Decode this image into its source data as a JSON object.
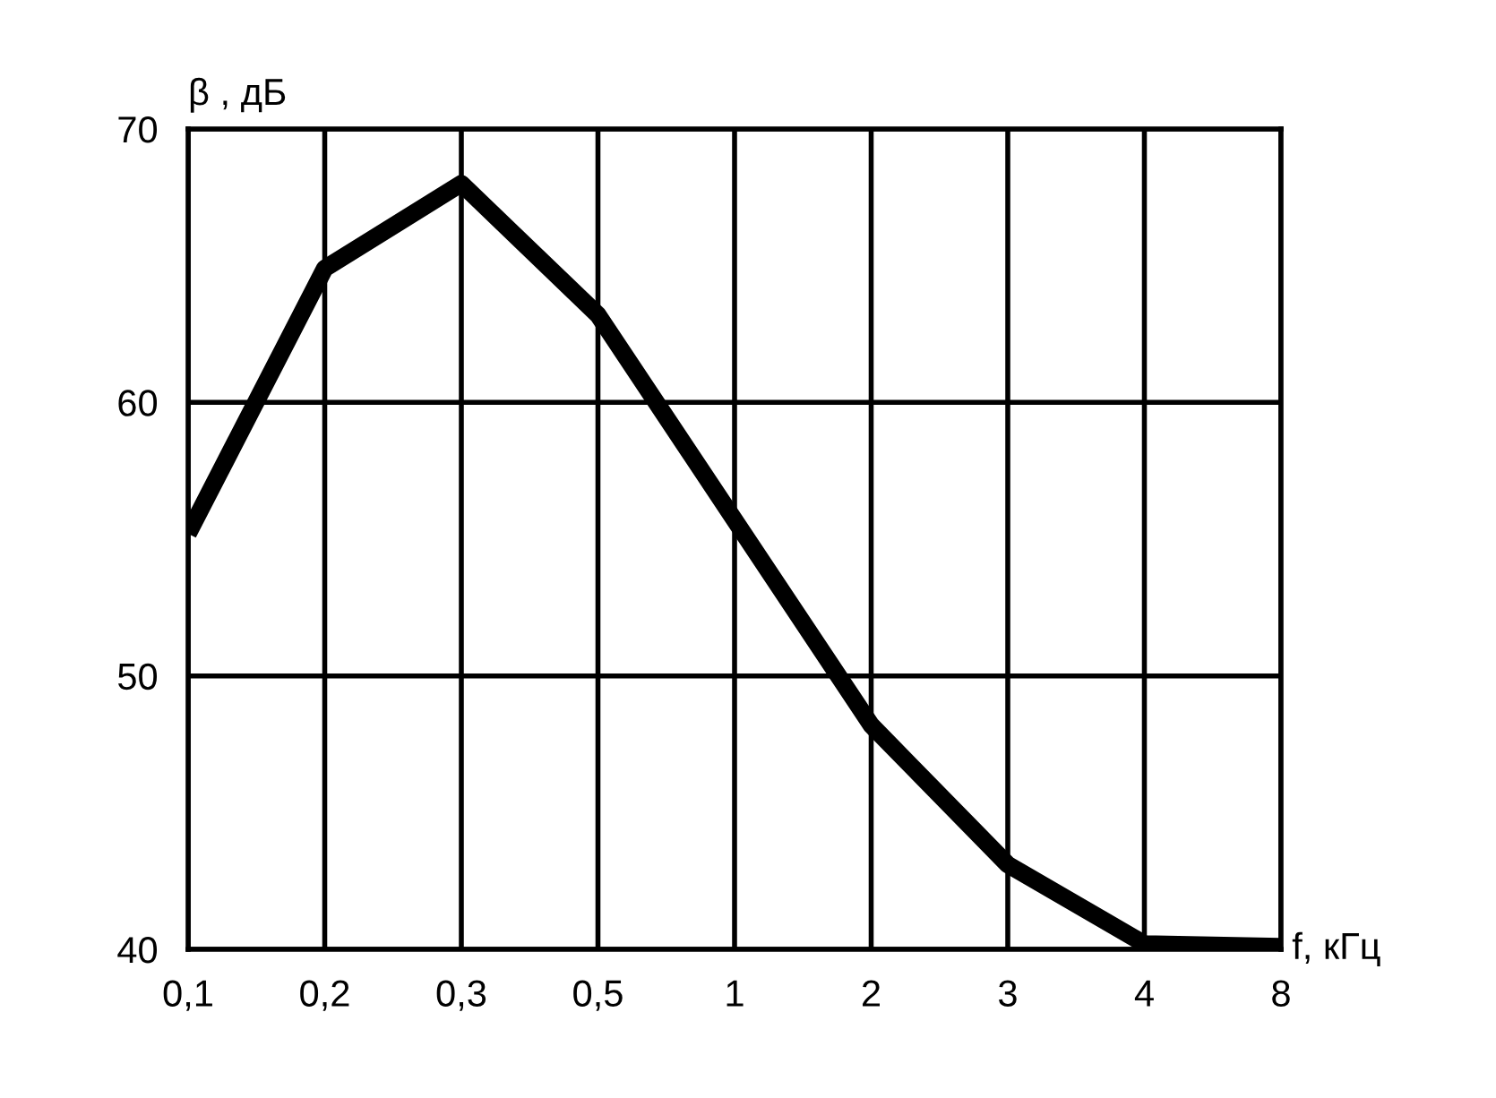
{
  "chart_data": {
    "type": "line",
    "xlabel": "f, кГц",
    "ylabel": "β , дБ",
    "categories": [
      "0,1",
      "0,2",
      "0,3",
      "0,5",
      "1",
      "2",
      "3",
      "4",
      "8"
    ],
    "series": [
      {
        "color": "#000000",
        "values": [
          55.2,
          64.9,
          68.0,
          63.2,
          55.7,
          48.2,
          43.1,
          40.2,
          40.1
        ]
      }
    ],
    "ylim": [
      40,
      70
    ],
    "yticks": [
      40,
      50,
      60,
      70
    ],
    "grid": true,
    "line_style": "solid",
    "marker": "none"
  }
}
